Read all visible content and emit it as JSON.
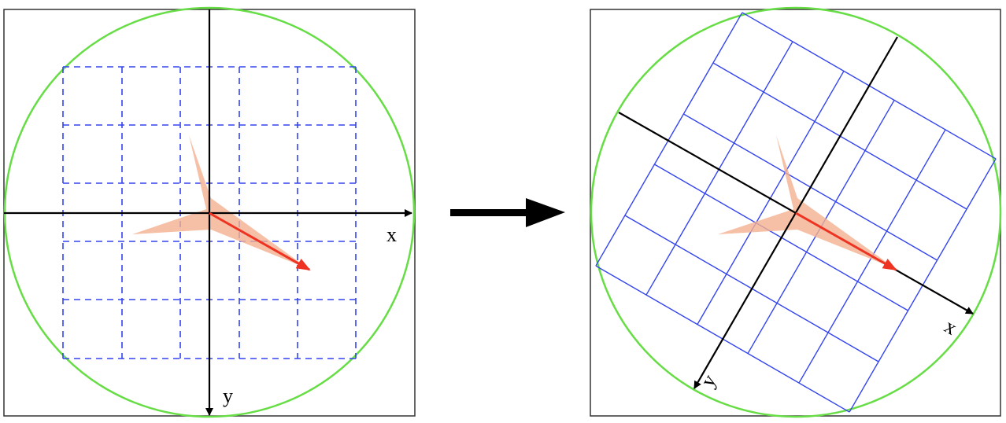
{
  "left_panel": {
    "x_axis_label": "x",
    "y_axis_label": "y"
  },
  "right_panel": {
    "x_axis_label": "x",
    "y_axis_label": "y"
  },
  "colors": {
    "circle": "#66dd44",
    "grid": "#3344ee",
    "axes": "#000000",
    "arrow": "#ee3322",
    "shape_fill": "#f4b090",
    "frame": "#333333"
  }
}
